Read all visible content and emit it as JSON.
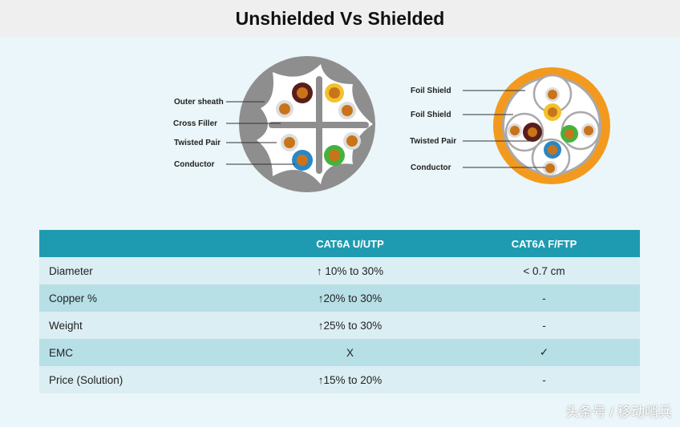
{
  "title": "Unshielded Vs Shielded",
  "left_diagram": {
    "labels": [
      "Outer sheath",
      "Cross Filler",
      "Twisted Pair",
      "Conductor"
    ]
  },
  "right_diagram": {
    "labels": [
      "Foil Shield",
      "Foil Shield",
      "Twisted Pair",
      "Conductor"
    ]
  },
  "table": {
    "headers": [
      "",
      "CAT6A U/UTP",
      "CAT6A F/FTP"
    ],
    "rows": [
      [
        "Diameter",
        "↑ 10% to 30%",
        "< 0.7 cm"
      ],
      [
        "Copper %",
        "↑20% to 30%",
        "-"
      ],
      [
        "Weight",
        "↑25% to 30%",
        "-"
      ],
      [
        "EMC",
        "X",
        "✓"
      ],
      [
        "Price (Solution)",
        "↑15% to 20%",
        "-"
      ]
    ]
  },
  "watermark": "头条号 / 移动哨兵",
  "colors": {
    "header": "#1f9bb1",
    "sheath_utp": "#8c8c8c",
    "sheath_ftp": "#f39a1e"
  }
}
